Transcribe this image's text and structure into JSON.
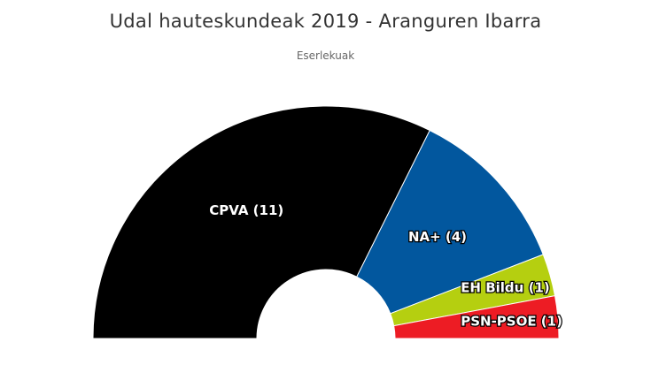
{
  "header": {
    "title": "Udal hauteskundeak 2019 - Aranguren Ibarra",
    "subtitle": "Eserlekuak"
  },
  "chart_data": {
    "type": "pie",
    "variant": "semicircle-donut",
    "title": "Udal hauteskundeak 2019 - Aranguren Ibarra",
    "subtitle": "Eserlekuak",
    "slices": [
      {
        "name": "CPVA",
        "value": 11,
        "label": "CPVA (11)",
        "color": "#000000"
      },
      {
        "name": "NA+",
        "value": 4,
        "label": "NA+ (4)",
        "color": "#02579e"
      },
      {
        "name": "EH Bildu",
        "value": 1,
        "label": "EH Bildu (1)",
        "color": "#b5cf10"
      },
      {
        "name": "PSN-PSOE",
        "value": 1,
        "label": "PSN-PSOE (1)",
        "color": "#ed1c24"
      }
    ]
  }
}
